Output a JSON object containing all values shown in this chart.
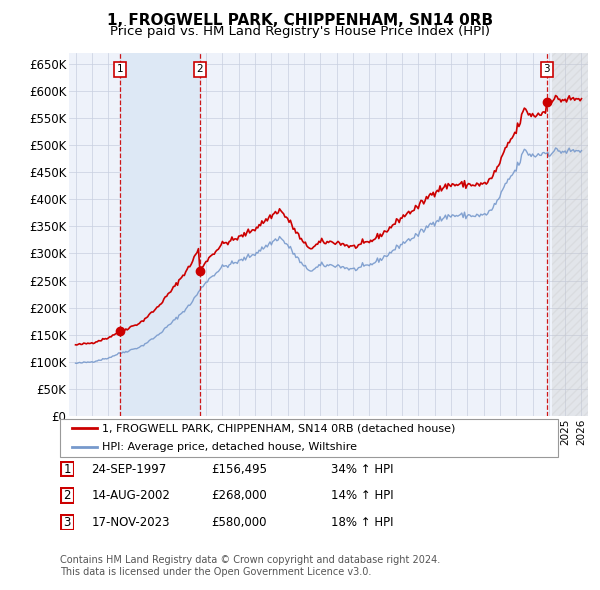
{
  "title": "1, FROGWELL PARK, CHIPPENHAM, SN14 0RB",
  "subtitle": "Price paid vs. HM Land Registry's House Price Index (HPI)",
  "ylim": [
    0,
    670000
  ],
  "yticks": [
    0,
    50000,
    100000,
    150000,
    200000,
    250000,
    300000,
    350000,
    400000,
    450000,
    500000,
    550000,
    600000,
    650000
  ],
  "ytick_labels": [
    "£0",
    "£50K",
    "£100K",
    "£150K",
    "£200K",
    "£250K",
    "£300K",
    "£350K",
    "£400K",
    "£450K",
    "£500K",
    "£550K",
    "£600K",
    "£650K"
  ],
  "xlim_left": 1994.6,
  "xlim_right": 2026.4,
  "sale_dates": [
    1997.73,
    2002.62,
    2023.88
  ],
  "sale_prices": [
    156495,
    268000,
    580000
  ],
  "sale_labels": [
    "1",
    "2",
    "3"
  ],
  "sale_date_strs": [
    "24-SEP-1997",
    "14-AUG-2002",
    "17-NOV-2023"
  ],
  "sale_price_strs": [
    "£156,495",
    "£268,000",
    "£580,000"
  ],
  "sale_hpi_strs": [
    "34% ↑ HPI",
    "14% ↑ HPI",
    "18% ↑ HPI"
  ],
  "red_line_color": "#cc0000",
  "blue_line_color": "#7799cc",
  "blue_fill_color": "#dde8f5",
  "legend_line1": "1, FROGWELL PARK, CHIPPENHAM, SN14 0RB (detached house)",
  "legend_line2": "HPI: Average price, detached house, Wiltshire",
  "footer": "Contains HM Land Registry data © Crown copyright and database right 2024.\nThis data is licensed under the Open Government Licence v3.0.",
  "plot_bg_color": "#eef2fa",
  "grid_color": "#c8cfe0",
  "title_fontsize": 11,
  "subtitle_fontsize": 9.5,
  "axis_fontsize": 8.5
}
